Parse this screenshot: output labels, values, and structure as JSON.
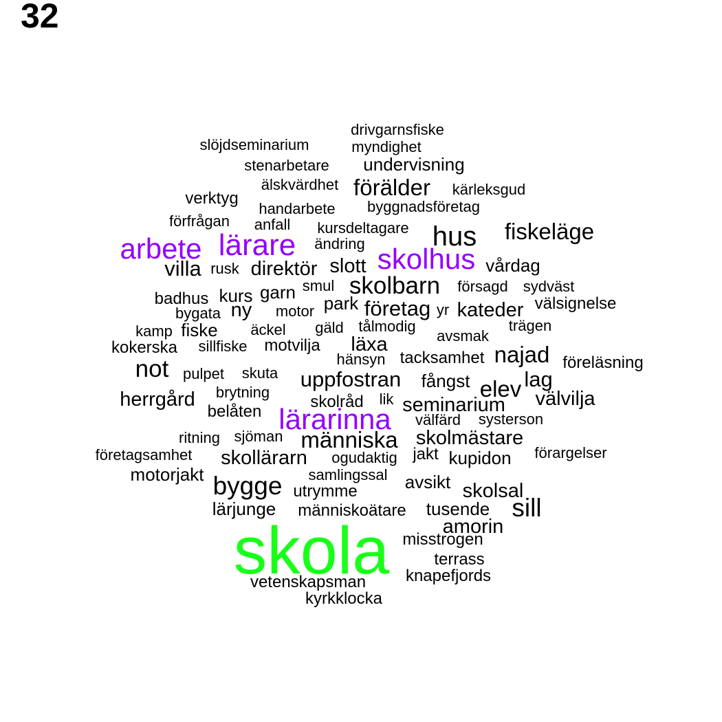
{
  "page_number": "32",
  "colors": {
    "default": "#000000",
    "highlight": "#9400ff",
    "top": "#19ff19"
  },
  "words": [
    {
      "text": "drivgarnsfiske",
      "weight": 1.0
    },
    {
      "text": "slöjdseminarium",
      "weight": 1.0
    },
    {
      "text": "myndighet",
      "weight": 1.0
    },
    {
      "text": "stenarbetare",
      "weight": 1.0
    },
    {
      "text": "undervisning",
      "weight": 1.2
    },
    {
      "text": "älskvärdhet",
      "weight": 1.0
    },
    {
      "text": "förälder",
      "weight": 1.5
    },
    {
      "text": "kärleksgud",
      "weight": 1.0
    },
    {
      "text": "verktyg",
      "weight": 1.1
    },
    {
      "text": "handarbete",
      "weight": 1.0
    },
    {
      "text": "byggnadsföretag",
      "weight": 1.0
    },
    {
      "text": "förfrågan",
      "weight": 1.0
    },
    {
      "text": "anfall",
      "weight": 1.0
    },
    {
      "text": "kursdeltagare",
      "weight": 1.0
    },
    {
      "text": "hus",
      "weight": 1.8
    },
    {
      "text": "fiskeläge",
      "weight": 1.5
    },
    {
      "text": "arbete",
      "weight": 1.9,
      "color": "highlight"
    },
    {
      "text": "lärare",
      "weight": 2.0,
      "color": "highlight"
    },
    {
      "text": "ändring",
      "weight": 1.0
    },
    {
      "text": "skolhus",
      "weight": 1.9,
      "color": "highlight"
    },
    {
      "text": "villa",
      "weight": 1.4
    },
    {
      "text": "rusk",
      "weight": 1.0
    },
    {
      "text": "direktör",
      "weight": 1.3
    },
    {
      "text": "slott",
      "weight": 1.3
    },
    {
      "text": "vårdag",
      "weight": 1.2
    },
    {
      "text": "smul",
      "weight": 1.0
    },
    {
      "text": "skolbarn",
      "weight": 1.6
    },
    {
      "text": "försagd",
      "weight": 1.0
    },
    {
      "text": "sydväst",
      "weight": 1.0
    },
    {
      "text": "badhus",
      "weight": 1.1
    },
    {
      "text": "kurs",
      "weight": 1.2
    },
    {
      "text": "garn",
      "weight": 1.2
    },
    {
      "text": "park",
      "weight": 1.2
    },
    {
      "text": "företag",
      "weight": 1.4
    },
    {
      "text": "välsignelse",
      "weight": 1.1
    },
    {
      "text": "bygata",
      "weight": 1.0
    },
    {
      "text": "ny",
      "weight": 1.3
    },
    {
      "text": "motor",
      "weight": 1.0
    },
    {
      "text": "yr",
      "weight": 1.0
    },
    {
      "text": "kateder",
      "weight": 1.3
    },
    {
      "text": "kamp",
      "weight": 1.0
    },
    {
      "text": "fiske",
      "weight": 1.2
    },
    {
      "text": "äckel",
      "weight": 1.0
    },
    {
      "text": "gäld",
      "weight": 1.0
    },
    {
      "text": "tålmodig",
      "weight": 1.0
    },
    {
      "text": "trägen",
      "weight": 1.0
    },
    {
      "text": "avsmak",
      "weight": 1.0
    },
    {
      "text": "kokerska",
      "weight": 1.1
    },
    {
      "text": "sillfiske",
      "weight": 1.0
    },
    {
      "text": "motvilja",
      "weight": 1.1
    },
    {
      "text": "läxa",
      "weight": 1.3
    },
    {
      "text": "najad",
      "weight": 1.5
    },
    {
      "text": "hänsyn",
      "weight": 1.0
    },
    {
      "text": "tacksamhet",
      "weight": 1.1
    },
    {
      "text": "föreläsning",
      "weight": 1.1
    },
    {
      "text": "not",
      "weight": 1.6
    },
    {
      "text": "pulpet",
      "weight": 1.0
    },
    {
      "text": "skuta",
      "weight": 1.0
    },
    {
      "text": "uppfostran",
      "weight": 1.4
    },
    {
      "text": "fångst",
      "weight": 1.2
    },
    {
      "text": "lag",
      "weight": 1.4
    },
    {
      "text": "elev",
      "weight": 1.5
    },
    {
      "text": "brytning",
      "weight": 1.0
    },
    {
      "text": "herrgård",
      "weight": 1.3
    },
    {
      "text": "skolråd",
      "weight": 1.1
    },
    {
      "text": "lik",
      "weight": 1.0
    },
    {
      "text": "seminarium",
      "weight": 1.3
    },
    {
      "text": "välvilja",
      "weight": 1.3
    },
    {
      "text": "belåten",
      "weight": 1.1
    },
    {
      "text": "lärarinna",
      "weight": 1.9,
      "color": "highlight"
    },
    {
      "text": "välfärd",
      "weight": 1.0
    },
    {
      "text": "systerson",
      "weight": 1.0
    },
    {
      "text": "ritning",
      "weight": 1.0
    },
    {
      "text": "sjöman",
      "weight": 1.0
    },
    {
      "text": "människa",
      "weight": 1.5
    },
    {
      "text": "skolmästare",
      "weight": 1.3
    },
    {
      "text": "företagsamhet",
      "weight": 1.0
    },
    {
      "text": "skollärarn",
      "weight": 1.3
    },
    {
      "text": "ogudaktig",
      "weight": 1.0
    },
    {
      "text": "jakt",
      "weight": 1.1
    },
    {
      "text": "kupidon",
      "weight": 1.2
    },
    {
      "text": "förargelser",
      "weight": 1.0
    },
    {
      "text": "motorjakt",
      "weight": 1.2
    },
    {
      "text": "samlingssal",
      "weight": 1.0
    },
    {
      "text": "bygge",
      "weight": 1.7
    },
    {
      "text": "avsikt",
      "weight": 1.2
    },
    {
      "text": "utrymme",
      "weight": 1.1
    },
    {
      "text": "skolsal",
      "weight": 1.3
    },
    {
      "text": "lärjunge",
      "weight": 1.2
    },
    {
      "text": "människoätare",
      "weight": 1.1
    },
    {
      "text": "tusende",
      "weight": 1.2
    },
    {
      "text": "sill",
      "weight": 1.7
    },
    {
      "text": "amorin",
      "weight": 1.3
    },
    {
      "text": "skola",
      "weight": 4.4,
      "color": "top"
    },
    {
      "text": "misstrogen",
      "weight": 1.1
    },
    {
      "text": "terrass",
      "weight": 1.1
    },
    {
      "text": "knapefjords",
      "weight": 1.1
    },
    {
      "text": "vetenskapsman",
      "weight": 1.1
    },
    {
      "text": "kyrkklocka",
      "weight": 1.1
    }
  ]
}
